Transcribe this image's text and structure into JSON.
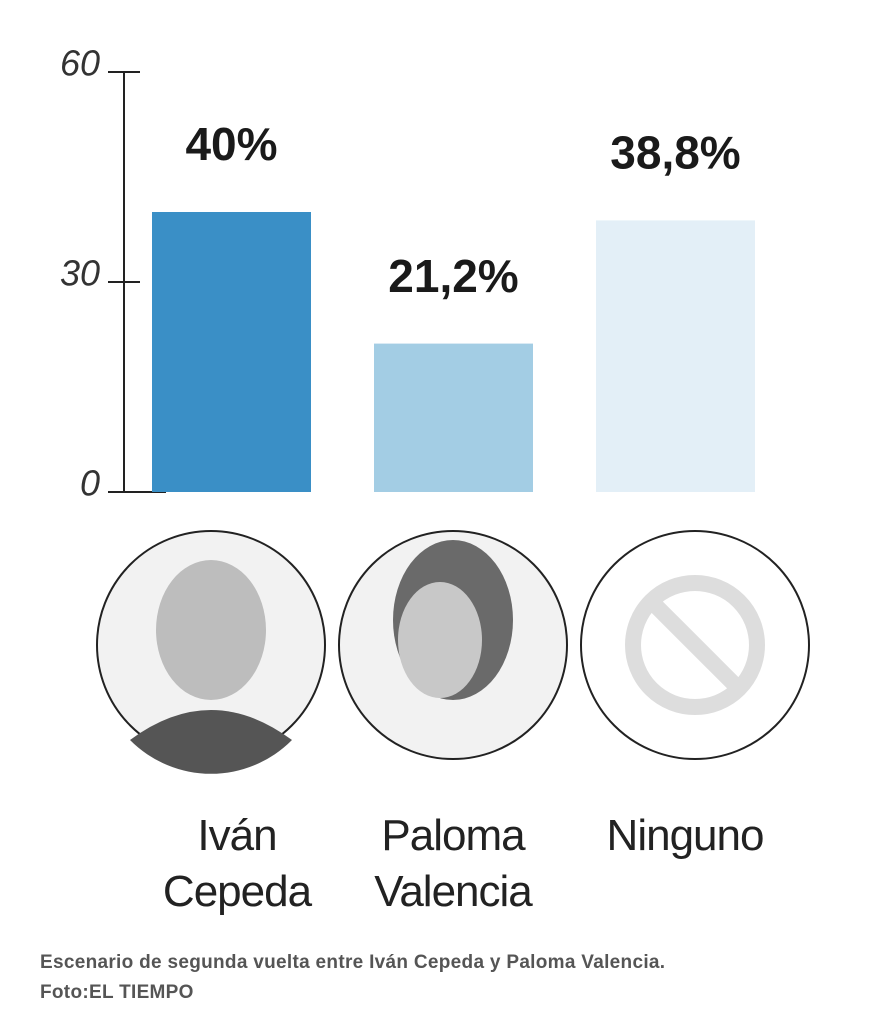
{
  "chart_data": {
    "type": "bar",
    "categories": [
      "Iván Cepeda",
      "Paloma Valencia",
      "Ninguno"
    ],
    "values": [
      40,
      21.2,
      38.8
    ],
    "value_labels": [
      "40%",
      "21,2%",
      "38,8%"
    ],
    "colors": [
      "#3a8fc6",
      "#a3cde4",
      "#e3eff7"
    ],
    "ylim": [
      0,
      60
    ],
    "yticks": [
      0,
      30,
      60
    ],
    "grid": false
  },
  "caption": {
    "lines": [
      "Escenario de segunda vuelta entre Iván Cepeda y Paloma Valencia.",
      "Foto:EL TIEMPO"
    ]
  }
}
